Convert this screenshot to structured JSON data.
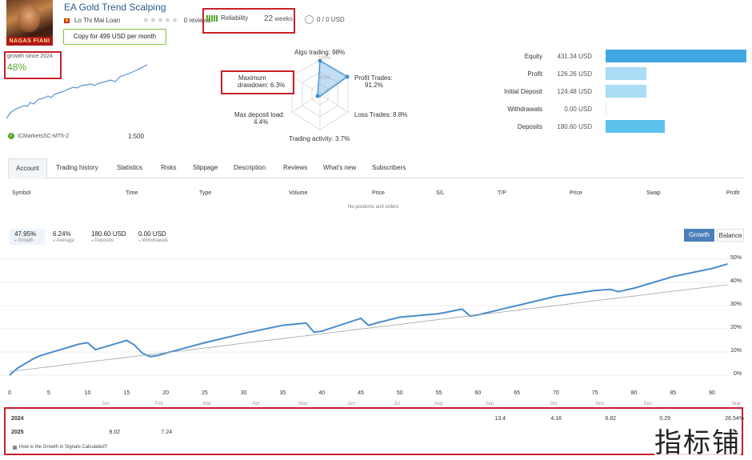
{
  "header": {
    "avatar_caption": "NAGAS FIANI",
    "title": "EA Gold Trend Scalping",
    "author": "Lo Thi Mai Loan",
    "stars": "★★★★★",
    "reviews": "0 reviews",
    "reliability_label": "Reliability",
    "weeks_num": "22",
    "weeks_label": "weeks",
    "subscribers_value": "0 / 0 USD",
    "copy_button": "Copy for 499 USD per month"
  },
  "summary": {
    "growth_since": "growth since 2024",
    "growth_value": "48%",
    "broker": "ICMarketsSC-MT5-2",
    "leverage": "1:500"
  },
  "radar": {
    "algo_trading": "Algo trading: 98%",
    "profit_trades": "Profit Trades:",
    "profit_trades_val": "91.2%",
    "loss_trades": "Loss Trades: 8.8%",
    "trading_activity": "Trading activity: 3.7%",
    "max_deposit_load": "Max deposit load:",
    "max_deposit_load_val": "4.4%",
    "max_drawdown": "Maximum",
    "max_drawdown2": "drawdown: 6.3%",
    "ring_100": "100%",
    "ring_50": "50%"
  },
  "stats": [
    {
      "label": "Equity",
      "value": "431.34 USD",
      "color": "#3fa7e0",
      "fraction": 1.0
    },
    {
      "label": "Profit",
      "value": "126.26 USD",
      "color": "#a9dcf5",
      "fraction": 0.29
    },
    {
      "label": "Initial Deposit",
      "value": "124.48 USD",
      "color": "#a9dcf5",
      "fraction": 0.29
    },
    {
      "label": "Withdrawals",
      "value": "0.00 USD",
      "color": "#a9dcf5",
      "fraction": 0.0
    },
    {
      "label": "Deposits",
      "value": "180.60 USD",
      "color": "#5ec2ef",
      "fraction": 0.42
    }
  ],
  "tabs": [
    "Account",
    "Trading history",
    "Statistics",
    "Risks",
    "Slippage",
    "Description",
    "Reviews",
    "What's new",
    "Subscribers"
  ],
  "table": {
    "headers": [
      "Symbol",
      "Time",
      "Type",
      "Volume",
      "Price",
      "S/L",
      "T/P",
      "Price",
      "Swap",
      "Profit"
    ],
    "empty": "No positions and orders"
  },
  "kpis": [
    {
      "value": "47.95%",
      "label": "Growth"
    },
    {
      "value": "6.24%",
      "label": "Average"
    },
    {
      "value": "180.60 USD",
      "label": "Deposits"
    },
    {
      "value": "0.00 USD",
      "label": "Withdrawals"
    }
  ],
  "buttons": {
    "growth": "Growth",
    "balance": "Balance"
  },
  "chart_data": {
    "type": "line",
    "x": [
      0,
      1,
      2,
      3,
      4,
      5,
      6,
      7,
      8,
      9,
      10,
      11,
      12,
      13,
      14,
      15,
      16,
      17,
      18,
      19,
      20,
      25,
      30,
      35,
      38,
      39,
      40,
      45,
      46,
      47,
      50,
      55,
      58,
      59,
      60,
      65,
      70,
      75,
      77,
      78,
      80,
      85,
      90,
      92
    ],
    "series": [
      {
        "values": [
          0,
          3,
          5,
          7,
          8.5,
          9.5,
          10.5,
          11.5,
          12.5,
          13.5,
          14,
          11,
          12,
          13,
          14,
          15,
          13,
          9.5,
          8,
          8.5,
          9.5,
          14,
          18,
          21.5,
          22.5,
          18.5,
          19,
          24.5,
          21.5,
          22.5,
          25,
          26.5,
          28.5,
          25.5,
          26,
          30,
          34,
          36.5,
          37,
          36,
          37.5,
          42.5,
          46,
          47.95
        ]
      },
      {
        "values": [
          1.6,
          2,
          2.4,
          2.8,
          3.2,
          3.6,
          4.0,
          4.5,
          4.9,
          5.3,
          5.7,
          6.1,
          6.5,
          6.9,
          7.3,
          7.7,
          8.1,
          8.5,
          8.9,
          9.3,
          9.7,
          11.7,
          13.8,
          15.8,
          17.0,
          17.4,
          17.8,
          19.9,
          20.3,
          20.7,
          21.9,
          24.0,
          25.2,
          25.6,
          26.0,
          28.0,
          30.0,
          32.1,
          32.9,
          33.3,
          34.1,
          36.2,
          38.2,
          39.0
        ]
      }
    ],
    "xticks": [
      "0",
      "5",
      "10",
      "15",
      "20",
      "25",
      "30",
      "35",
      "40",
      "45",
      "50",
      "55",
      "60",
      "65",
      "70",
      "75",
      "80",
      "85",
      "90"
    ],
    "yticks": [
      "0%",
      "10%",
      "20%",
      "30%",
      "40%",
      "50%"
    ],
    "months": [
      "Jan",
      "Feb",
      "Mar",
      "Apr",
      "May",
      "Jun",
      "Jul",
      "Aug",
      "Sep",
      "Oct",
      "Nov",
      "Dec",
      "Year"
    ],
    "ylim": [
      0,
      50
    ]
  },
  "yearly": {
    "rows": [
      {
        "year": "2024",
        "cells": [
          {
            "col": "sep",
            "v": "13.4"
          },
          {
            "col": "oct",
            "v": "4.16"
          },
          {
            "col": "nov",
            "v": "6.82"
          },
          {
            "col": "dec",
            "v": "0.29"
          },
          {
            "col": "year",
            "v": "26.54%"
          }
        ]
      },
      {
        "year": "2025",
        "cells": [
          {
            "col": "jan",
            "v": "9.02"
          },
          {
            "col": "feb",
            "v": "7.24"
          }
        ]
      }
    ],
    "howis": "How is the Growth in Signals Calculated?"
  },
  "watermark": "指标铺"
}
